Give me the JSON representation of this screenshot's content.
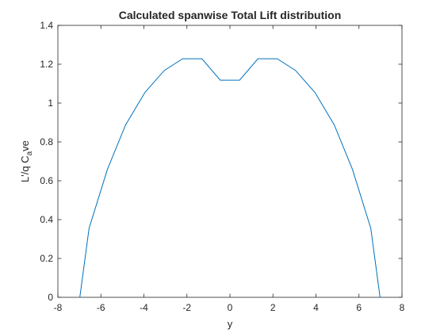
{
  "chart_data": {
    "type": "line",
    "title": "Calculated spanwise Total Lift distribution",
    "xlabel": "y",
    "ylabel": {
      "prefix": "L'/q C",
      "subscript": "a",
      "suffix": "ve"
    },
    "xlim": [
      -8,
      8
    ],
    "ylim": [
      0,
      1.4
    ],
    "xticks": [
      -8,
      -6,
      -4,
      -2,
      0,
      2,
      4,
      6,
      8
    ],
    "yticks": [
      0,
      0.2,
      0.4,
      0.6,
      0.8,
      1,
      1.2,
      1.4
    ],
    "grid": false,
    "line_color": "#0072bd",
    "series": [
      {
        "x": [
          -6.98,
          -6.55,
          -5.7,
          -4.85,
          -3.95,
          -3.05,
          -2.2,
          -1.3,
          -0.45,
          0.45,
          1.3,
          2.2,
          3.05,
          3.95,
          4.85,
          5.7,
          6.55,
          6.98
        ],
        "y": [
          0.0,
          0.355,
          0.658,
          0.888,
          1.055,
          1.168,
          1.228,
          1.228,
          1.118,
          1.118,
          1.228,
          1.228,
          1.168,
          1.055,
          0.888,
          0.658,
          0.355,
          0.0
        ]
      }
    ]
  }
}
